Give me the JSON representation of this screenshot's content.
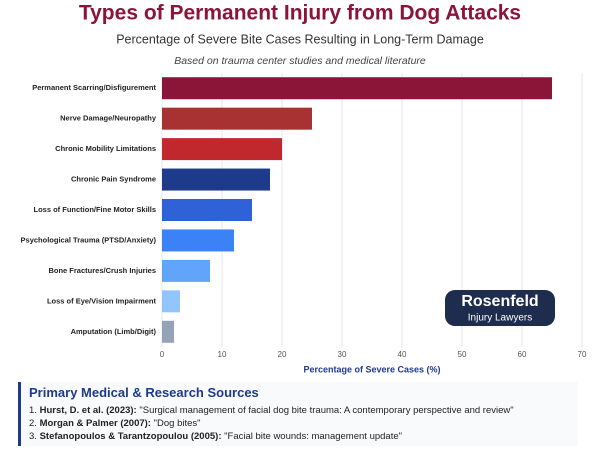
{
  "chart_data": {
    "type": "bar",
    "orientation": "horizontal",
    "title": "Types of Permanent Injury from Dog Attacks",
    "subtitle": "Percentage of Severe Bite Cases Resulting in Long-Term Damage",
    "note": "Based on trauma center studies and medical literature",
    "x_label": "Percentage of Severe Cases (%)",
    "categories": [
      "Permanent Scarring/Disfigurement",
      "Nerve Damage/Neuropathy",
      "Chronic Mobility Limitations",
      "Chronic Pain Syndrome",
      "Loss of Function/Fine Motor Skills",
      "Psychological Trauma (PTSD/Anxiety)",
      "Bone Fractures/Crush Injuries",
      "Loss of Eye/Vision Impairment",
      "Amputation (Limb/Digit)"
    ],
    "values": [
      65,
      25,
      20,
      18,
      15,
      12,
      8,
      3,
      2
    ],
    "colors": [
      "#8b1538",
      "#a83232",
      "#c0282d",
      "#1e3a8a",
      "#2f62d8",
      "#3b82f6",
      "#60a5fa",
      "#93c5fd",
      "#94a3b8"
    ],
    "xlim": [
      0,
      70
    ],
    "xticks": [
      0,
      10,
      20,
      30,
      40,
      50,
      60,
      70
    ],
    "grid": true
  },
  "logo": {
    "name": "Rosenfeld",
    "tagline": "Injury Lawyers"
  },
  "sources": {
    "heading": "Primary Medical & Research Sources",
    "items": [
      {
        "number": "1.",
        "author": "Hurst, D. et al. (2023):",
        "title": "\"Surgical management of facial dog bite trauma: A contemporary perspective and review\""
      },
      {
        "number": "2.",
        "author": "Morgan & Palmer (2007):",
        "title": "\"Dog bites\""
      },
      {
        "number": "3.",
        "author": "Stefanopoulos & Tarantzopoulou (2005):",
        "title": "\"Facial bite wounds: management update\""
      }
    ]
  }
}
